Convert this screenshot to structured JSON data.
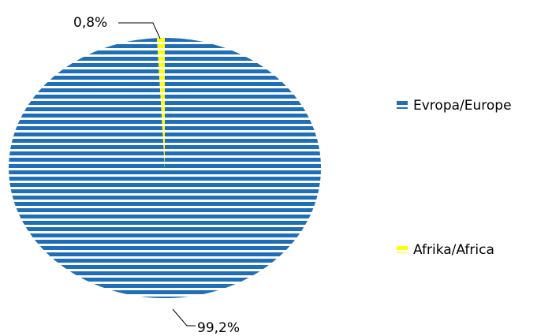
{
  "chart_data": {
    "type": "pie",
    "title": "",
    "slices": [
      {
        "label": "Evropa/Europe",
        "value": 99.2,
        "display": "99,2%",
        "color": "#1f6fb8"
      },
      {
        "label": "Afrika/Africa",
        "value": 0.8,
        "display": "0,8%",
        "color": "#ffff00"
      }
    ],
    "legend_position": "right",
    "fill_pattern": "horizontal-stripes"
  }
}
